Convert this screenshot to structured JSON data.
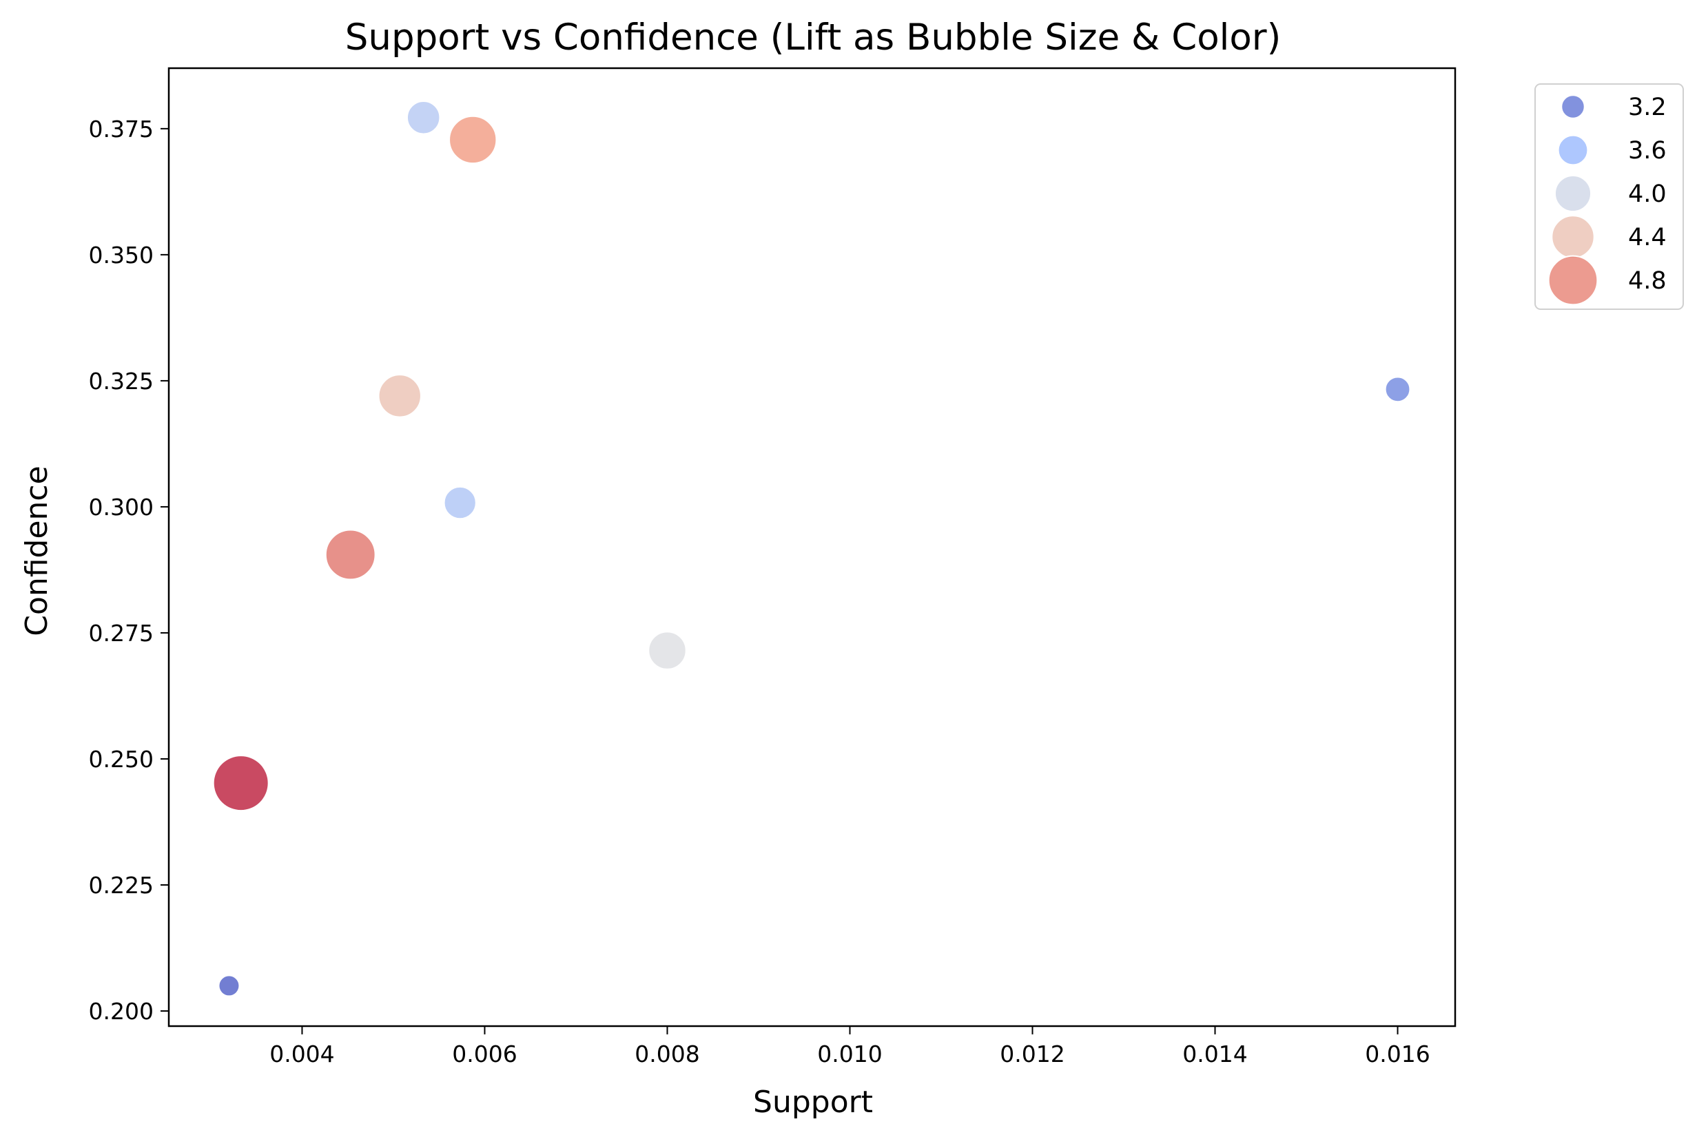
{
  "chart_data": {
    "type": "scatter",
    "title": "Support vs Confidence (Lift as Bubble Size & Color)",
    "xlabel": "Support",
    "ylabel": "Confidence",
    "xlim": [
      0.00254,
      0.01663
    ],
    "ylim": [
      0.197,
      0.387
    ],
    "x_ticks": [
      0.004,
      0.006,
      0.008,
      0.01,
      0.012,
      0.014,
      0.016
    ],
    "x_tick_labels": [
      "0.004",
      "0.006",
      "0.008",
      "0.010",
      "0.012",
      "0.014",
      "0.016"
    ],
    "y_ticks": [
      0.2,
      0.225,
      0.25,
      0.275,
      0.3,
      0.325,
      0.35,
      0.375
    ],
    "y_tick_labels": [
      "0.200",
      "0.225",
      "0.250",
      "0.275",
      "0.300",
      "0.325",
      "0.350",
      "0.375"
    ],
    "grid": false,
    "size_and_color_encoding": "lift",
    "colormap": "coolwarm",
    "lift_range": [
      3.05,
      5.2
    ],
    "points": [
      {
        "support": 0.0032,
        "confidence": 0.205,
        "lift": 3.05
      },
      {
        "support": 0.00333,
        "confidence": 0.2452,
        "lift": 5.2
      },
      {
        "support": 0.00453,
        "confidence": 0.2905,
        "lift": 4.85
      },
      {
        "support": 0.00507,
        "confidence": 0.322,
        "lift": 4.4
      },
      {
        "support": 0.00533,
        "confidence": 0.3772,
        "lift": 3.8
      },
      {
        "support": 0.00573,
        "confidence": 0.3008,
        "lift": 3.75
      },
      {
        "support": 0.00587,
        "confidence": 0.3728,
        "lift": 4.7
      },
      {
        "support": 0.008,
        "confidence": 0.2715,
        "lift": 4.1
      },
      {
        "support": 0.016,
        "confidence": 0.3233,
        "lift": 3.3
      }
    ],
    "legend": {
      "placement": "outside upper right",
      "entries": [
        {
          "label": "3.2",
          "lift": 3.2
        },
        {
          "label": "3.6",
          "lift": 3.6
        },
        {
          "label": "4.0",
          "lift": 4.0
        },
        {
          "label": "4.4",
          "lift": 4.4
        },
        {
          "label": "4.8",
          "lift": 4.8
        }
      ]
    }
  }
}
